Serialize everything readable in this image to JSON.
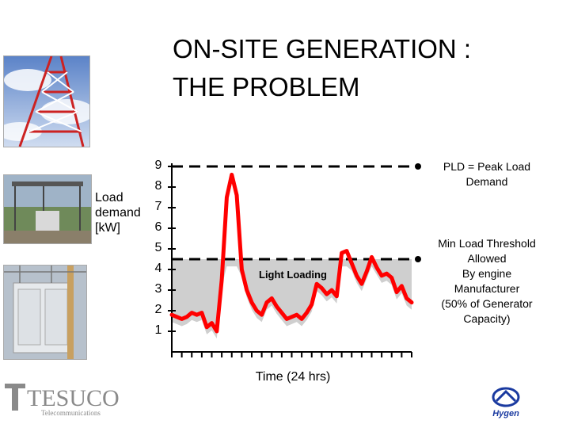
{
  "slide": {
    "title": "ON-SITE GENERATION :\nTHE PROBLEM",
    "y_axis_label": "Load\ndemand\n[kW]",
    "x_axis_label": "Time (24 hrs)",
    "pld_label": "PLD = Peak Load\nDemand",
    "threshold_label": "Min Load Threshold\nAllowed\nBy engine\nManufacturer\n(50% of Generator\nCapacity)",
    "light_loading_label": "Light Loading",
    "logo_left_text": "TESUCO",
    "logo_left_sub": "Telecommunications",
    "logo_right_text": "Hygen"
  },
  "colors": {
    "load_line": "#ff0000",
    "area_fill": "#cfcfcf",
    "dashed": "#000000"
  },
  "chart_data": {
    "type": "line",
    "title": "",
    "xlabel": "Time (24 hrs)",
    "ylabel": "Load demand [kW]",
    "ylim": [
      0,
      9
    ],
    "xlim": [
      0,
      24
    ],
    "yticks": [
      "9",
      "8",
      "7",
      "6",
      "5",
      "4",
      "3",
      "2",
      "1"
    ],
    "series": [
      {
        "name": "Load",
        "x": [
          0,
          1,
          1.5,
          2,
          2.5,
          3,
          3.5,
          4,
          4.5,
          5,
          5.5,
          6,
          6.5,
          7,
          7.5,
          8,
          8.5,
          9,
          9.5,
          10,
          10.5,
          11,
          11.5,
          12,
          12.5,
          13,
          13.5,
          14,
          14.5,
          15,
          15.5,
          16,
          16.5,
          17,
          17.5,
          18,
          18.5,
          19,
          19.5,
          20,
          20.5,
          21,
          21.5,
          22,
          22.5,
          23,
          23.5,
          24
        ],
        "y": [
          1.8,
          1.6,
          1.7,
          1.9,
          1.8,
          1.9,
          1.2,
          1.4,
          1.0,
          3.5,
          7.5,
          8.6,
          7.6,
          4.0,
          3.0,
          2.4,
          2.0,
          1.8,
          2.4,
          2.6,
          2.2,
          1.9,
          1.6,
          1.7,
          1.8,
          1.6,
          1.9,
          2.3,
          3.3,
          3.1,
          2.8,
          3.0,
          2.7,
          4.8,
          4.9,
          4.3,
          3.7,
          3.3,
          3.9,
          4.6,
          4.1,
          3.7,
          3.8,
          3.6,
          2.9,
          3.2,
          2.6,
          2.4
        ]
      }
    ],
    "reference_lines": [
      {
        "label": "PLD = Peak Load Demand",
        "y": 9
      },
      {
        "label": "Min Load Threshold Allowed By engine Manufacturer (50% of Generator Capacity)",
        "y": 4.5
      }
    ]
  }
}
